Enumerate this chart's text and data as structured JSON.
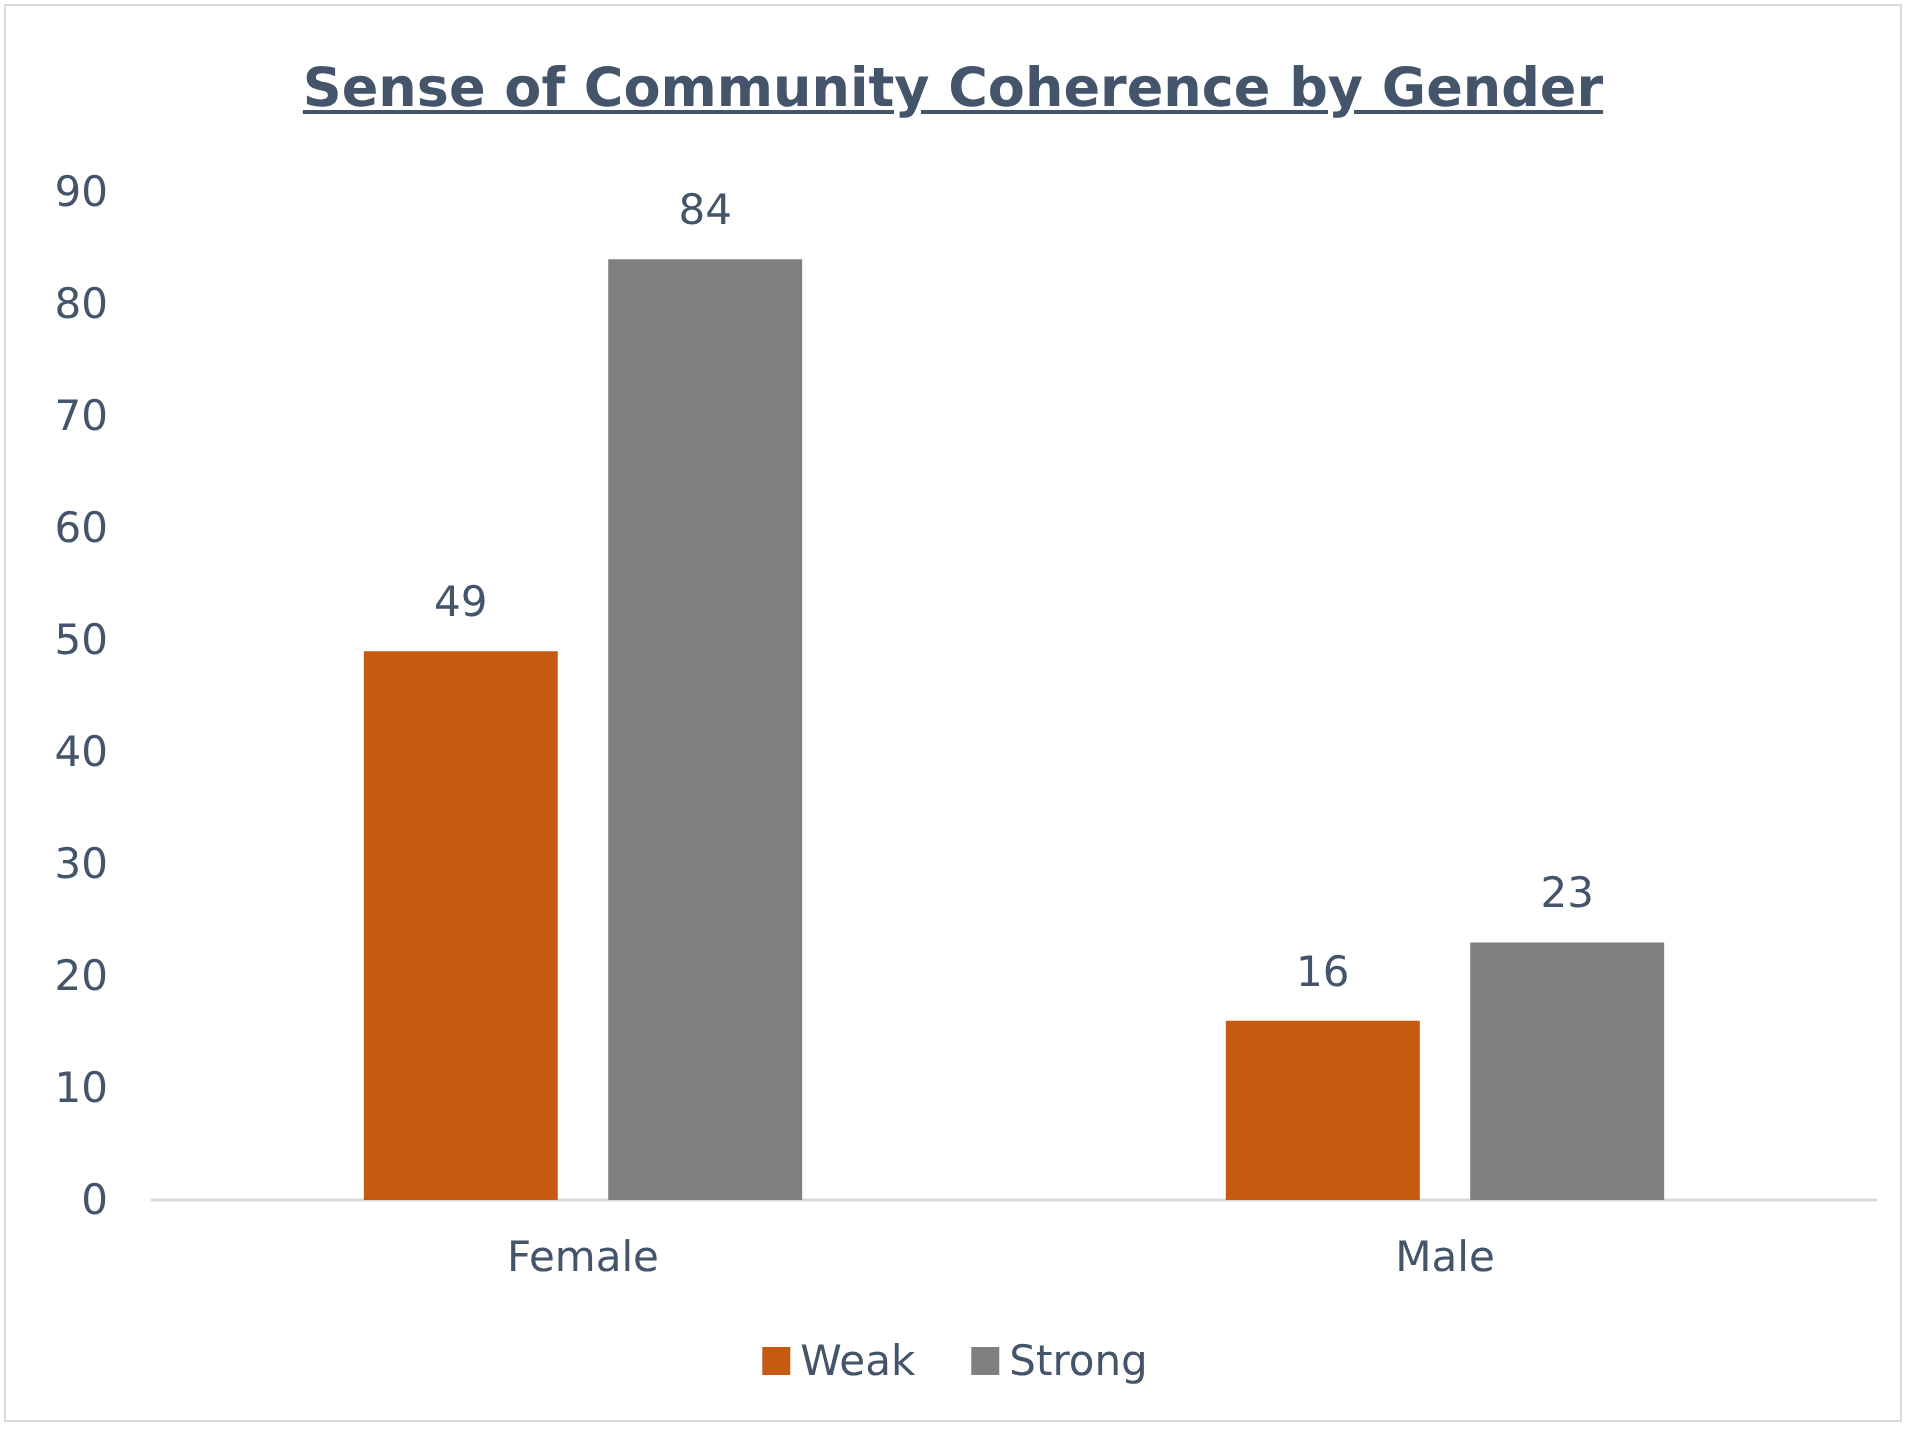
{
  "chart_data": {
    "type": "bar",
    "title": "Sense of Community Coherence by Gender",
    "categories": [
      "Female",
      "Male"
    ],
    "series": [
      {
        "name": "Weak",
        "color": "#c55a11",
        "values": [
          49,
          16
        ]
      },
      {
        "name": "Strong",
        "color": "#7f7f7f",
        "values": [
          84,
          23
        ]
      }
    ],
    "ylim": [
      0,
      90
    ],
    "yticks": [
      0,
      10,
      20,
      30,
      40,
      50,
      60,
      70,
      80,
      90
    ],
    "grid": false,
    "legend": "bottom",
    "data_labels": true
  }
}
